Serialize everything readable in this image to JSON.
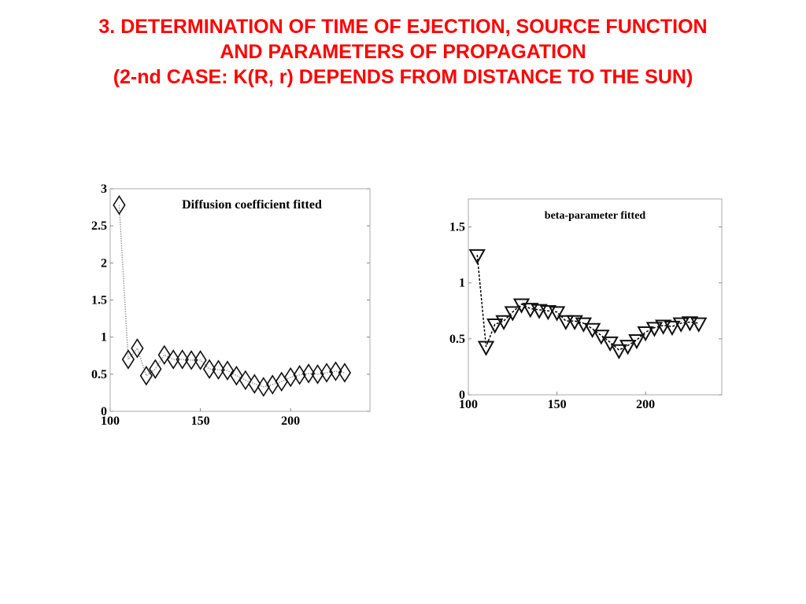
{
  "slide": {
    "title_lines": [
      "3. DETERMINATION OF TIME OF EJECTION, SOURCE FUNCTION",
      "AND PARAMETERS OF PROPAGATION",
      "(2-nd CASE: K(R, r) DEPENDS FROM DISTANCE TO THE SUN)"
    ],
    "title_color": "#ff0000"
  },
  "chart_data": [
    {
      "type": "line",
      "title": "Diffusion coefficient fitted",
      "marker": "diamond",
      "xlabel": "",
      "ylabel": "",
      "xlim": [
        100,
        244
      ],
      "ylim": [
        0,
        3
      ],
      "xticks": [
        "100",
        "150",
        "200"
      ],
      "yticks": [
        "0",
        "0.5",
        "1",
        "1.5",
        "2",
        "2.5",
        "3"
      ],
      "x": [
        105,
        110,
        115,
        120,
        125,
        130,
        135,
        140,
        145,
        150,
        155,
        160,
        165,
        170,
        175,
        180,
        185,
        190,
        195,
        200,
        205,
        210,
        215,
        220,
        225,
        230
      ],
      "values": [
        2.78,
        0.7,
        0.85,
        0.48,
        0.57,
        0.76,
        0.7,
        0.7,
        0.69,
        0.69,
        0.57,
        0.56,
        0.55,
        0.48,
        0.42,
        0.37,
        0.33,
        0.36,
        0.4,
        0.46,
        0.49,
        0.51,
        0.5,
        0.52,
        0.54,
        0.52
      ]
    },
    {
      "type": "line",
      "title": "beta-parameter fitted",
      "marker": "triangle-down",
      "xlabel": "",
      "ylabel": "",
      "xlim": [
        100,
        243
      ],
      "ylim": [
        0,
        1.75
      ],
      "xticks": [
        "100",
        "150",
        "200"
      ],
      "yticks": [
        "0",
        "0.5",
        "1",
        "1.5"
      ],
      "x": [
        105,
        110,
        115,
        120,
        125,
        130,
        135,
        140,
        145,
        150,
        155,
        160,
        165,
        170,
        175,
        180,
        185,
        190,
        195,
        200,
        205,
        210,
        215,
        220,
        225,
        230
      ],
      "values": [
        1.25,
        0.43,
        0.63,
        0.66,
        0.74,
        0.81,
        0.77,
        0.76,
        0.75,
        0.74,
        0.66,
        0.66,
        0.64,
        0.59,
        0.53,
        0.47,
        0.4,
        0.44,
        0.49,
        0.56,
        0.6,
        0.62,
        0.61,
        0.64,
        0.65,
        0.64
      ]
    }
  ]
}
